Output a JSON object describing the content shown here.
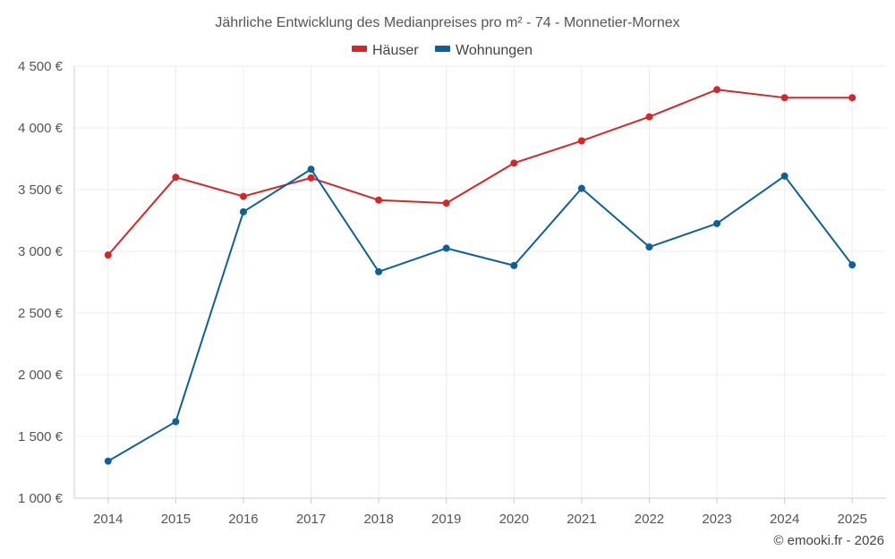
{
  "chart_data": {
    "type": "line",
    "title": "Jährliche Entwicklung des Medianpreises pro m² - 74 - Monnetier-Mornex",
    "categories": [
      "2014",
      "2015",
      "2016",
      "2017",
      "2018",
      "2019",
      "2020",
      "2021",
      "2022",
      "2023",
      "2024",
      "2025"
    ],
    "ylim": [
      1000,
      4500
    ],
    "yticks": [
      1000,
      1500,
      2000,
      2500,
      3000,
      3500,
      4000,
      4500
    ],
    "ytick_labels": [
      "1 000 €",
      "1 500 €",
      "2 000 €",
      "2 500 €",
      "3 000 €",
      "3 500 €",
      "4 000 €",
      "4 500 €"
    ],
    "series": [
      {
        "name": "Häuser",
        "color": "#d62728",
        "values": [
          2970,
          3600,
          3445,
          3595,
          3415,
          3390,
          3715,
          3895,
          4090,
          4310,
          4245,
          4245
        ]
      },
      {
        "name": "Wohnungen",
        "color": "#0d6199",
        "values": [
          1300,
          1620,
          3320,
          3665,
          2835,
          3025,
          2885,
          3510,
          3035,
          3225,
          3610,
          2890
        ]
      }
    ],
    "grid": true,
    "legend": "top-center"
  },
  "credit": "© emooki.fr - 2026"
}
